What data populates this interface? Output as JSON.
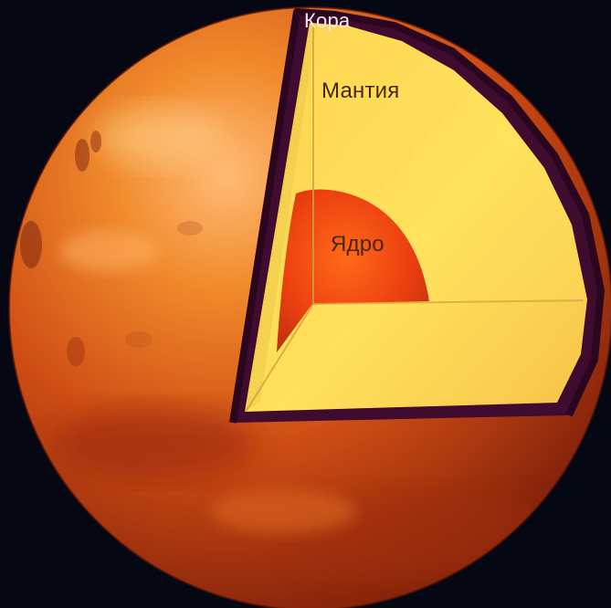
{
  "labels": {
    "crust": "Кора",
    "mantle": "Мантия",
    "core": "Ядро"
  },
  "colors": {
    "background": "#050812",
    "surface_dark": "#8f260b",
    "surface_mid": "#c94512",
    "surface_light": "#f08a2c",
    "crust": "#4a1036",
    "mantle": "#ffe15a",
    "core": "#f24a12"
  }
}
